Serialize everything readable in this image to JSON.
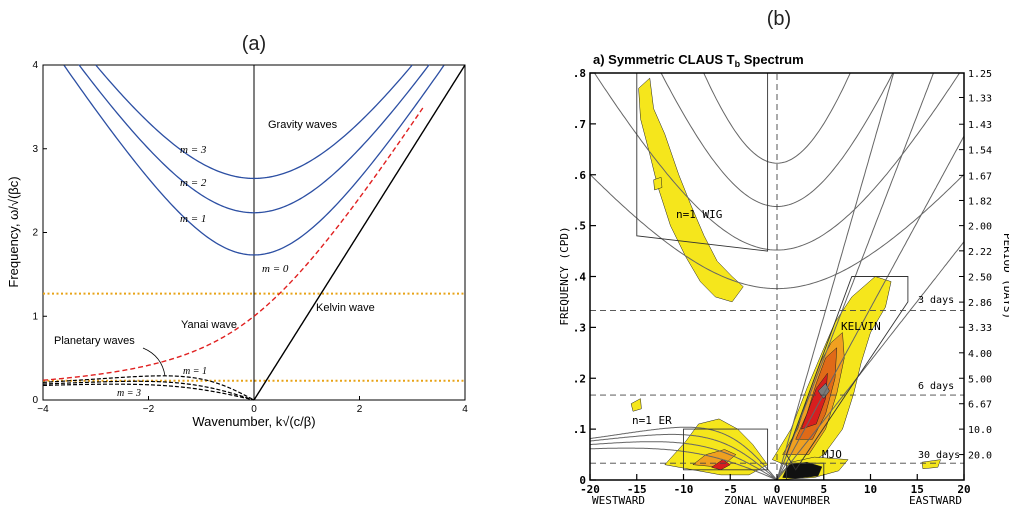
{
  "chart_data": [
    {
      "id": "a",
      "type": "line",
      "panel_label": "(a)",
      "xlabel": "Wavenumber, k√(c/β)",
      "ylabel": "Frequency, ω/√(βc)",
      "xlim": [
        -4,
        4
      ],
      "ylim": [
        0,
        4
      ],
      "xticks": [
        "−4",
        "−2",
        "0",
        "2",
        "4"
      ],
      "yticks": [
        "0",
        "1",
        "2",
        "3",
        "4"
      ],
      "annotations": {
        "gravity": "Gravity waves",
        "m3_gravity": "m = 3",
        "m2_gravity": "m = 2",
        "m1_gravity": "m = 1",
        "m0": "m = 0",
        "kelvin": "Kelvin wave",
        "yanai": "Yanai wave",
        "planetary": "Planetary waves",
        "m1_planetary": "m = 1",
        "m3_planetary": "m = 3"
      },
      "reference_lines": [
        1.27,
        0.23
      ],
      "colors": {
        "gravity": "#2c4fa3",
        "yanai": "#e02020",
        "kelvin": "#000000",
        "planetary": "#000000",
        "reference": "#e8a317"
      },
      "series": [
        {
          "kind": "gravity",
          "m": 1
        },
        {
          "kind": "gravity",
          "m": 2
        },
        {
          "kind": "gravity",
          "m": 3
        },
        {
          "kind": "yanai"
        },
        {
          "kind": "kelvin"
        },
        {
          "kind": "rossby",
          "m": 1
        },
        {
          "kind": "rossby",
          "m": 2
        },
        {
          "kind": "rossby",
          "m": 3
        }
      ]
    },
    {
      "id": "b",
      "type": "heatmap",
      "panel_label": "(b)",
      "title": "a) Symmetric CLAUS T",
      "title_sub": "b",
      "title_tail": " Spectrum",
      "xlabel": "ZONAL WAVENUMBER",
      "xlabel_left": "WESTWARD",
      "xlabel_right": "EASTWARD",
      "ylabel": "FREQUENCY (CPD)",
      "ylabel_right": "PERIOD (DAYS)",
      "xlim": [
        -20,
        20
      ],
      "ylim": [
        0,
        0.8
      ],
      "xticks": [
        -20,
        -15,
        -10,
        -5,
        0,
        5,
        10,
        15,
        20
      ],
      "xtick_labels": [
        "-20",
        "-15",
        "-10",
        "-5",
        "0",
        "5",
        "10",
        "15",
        "20"
      ],
      "yticks": [
        0,
        0.1,
        0.2,
        0.3,
        0.4,
        0.5,
        0.6,
        0.7,
        0.8
      ],
      "ytick_labels": [
        "0",
        ".1",
        ".2",
        ".3",
        ".4",
        ".5",
        ".6",
        ".7",
        ".8"
      ],
      "period_ticks": [
        1.25,
        1.33,
        1.43,
        1.54,
        1.67,
        1.82,
        2.0,
        2.22,
        2.5,
        2.86,
        3.33,
        4.0,
        5.0,
        6.67,
        10.0,
        20.0
      ],
      "period_labels": [
        "1.25",
        "1.33",
        "1.43",
        "1.54",
        "1.67",
        "1.82",
        "2.00",
        "2.22",
        "2.50",
        "2.86",
        "3.33",
        "4.00",
        "5.00",
        "6.67",
        "10.0",
        "20.0"
      ],
      "period_lines": [
        {
          "freq": 0.333,
          "label": "3 days"
        },
        {
          "freq": 0.167,
          "label": "6 days"
        },
        {
          "freq": 0.033,
          "label": "30 days"
        }
      ],
      "labels": {
        "wig": "n=1 WIG",
        "kelvin": "KELVIN",
        "er": "n=1 ER",
        "mjo": "MJO"
      },
      "colors": {
        "yellow": "#f5e61c",
        "orange": "#f0a020",
        "dark_orange": "#e06a18",
        "red": "#d81e1e",
        "gray": "#7a7a7a",
        "black": "#111111"
      }
    }
  ]
}
